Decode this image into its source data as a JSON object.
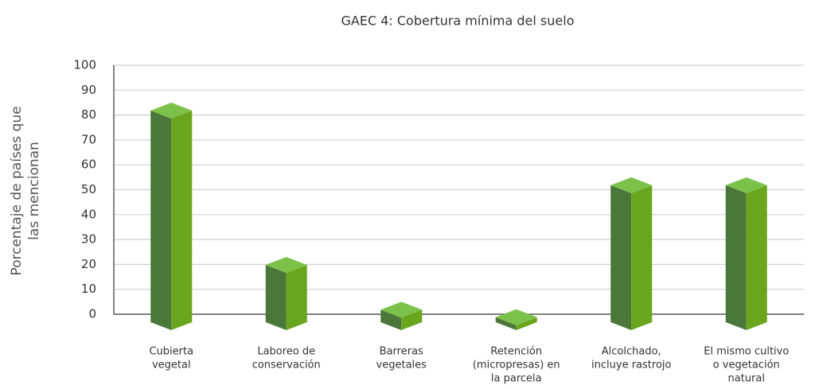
{
  "chart_data": {
    "type": "bar3d",
    "title": "GAEC 4: Cobertura mínima del suelo",
    "y_label": [
      "Porcentaje de países que",
      "las mencionan"
    ],
    "categories": [
      [
        "Cubierta",
        "vegetal"
      ],
      [
        "Laboreo de",
        "conservación"
      ],
      [
        "Barreras",
        "vegetales"
      ],
      [
        "Retención",
        "(micropresas) en",
        "la parcela"
      ],
      [
        "Alcolchado,",
        "incluye rastrojo"
      ],
      [
        "El mismo cultivo",
        "o vegetación",
        "natural"
      ]
    ],
    "values": [
      85,
      23,
      5,
      2,
      55,
      55
    ],
    "colors": {
      "left": "#4b773a",
      "right": "#6aa51e",
      "top": "#7cc24a"
    },
    "ylim": [
      0,
      100
    ],
    "yticks": [
      0,
      10,
      20,
      30,
      40,
      50,
      60,
      70,
      80,
      90,
      100
    ],
    "grid": true
  }
}
